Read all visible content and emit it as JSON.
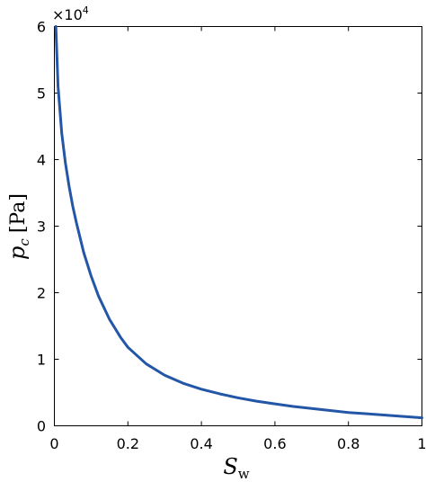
{
  "chart_data": {
    "type": "line",
    "title": "",
    "xlabel": {
      "base": "S",
      "sub": "w"
    },
    "ylabel": {
      "base": "p",
      "sub": "c",
      "unit": "[Pa]"
    },
    "xlim": [
      0,
      1
    ],
    "ylim": [
      0,
      6
    ],
    "y_scale_label": {
      "base": "×10",
      "exp": "4"
    },
    "x_ticks": [
      "0",
      "0.2",
      "0.4",
      "0.6",
      "0.8",
      "1"
    ],
    "y_ticks": [
      "0",
      "1",
      "2",
      "3",
      "4",
      "5",
      "6"
    ],
    "grid": false,
    "line_color": "#2356a6",
    "series": [
      {
        "x": [
          0.004,
          0.01,
          0.02,
          0.03,
          0.04,
          0.05,
          0.06,
          0.08,
          0.1,
          0.12,
          0.15,
          0.18,
          0.2,
          0.25,
          0.3,
          0.35,
          0.4,
          0.45,
          0.5,
          0.55,
          0.6,
          0.65,
          0.7,
          0.75,
          0.8,
          0.85,
          0.9,
          0.95,
          1.0
        ],
        "y": [
          6.0,
          5.1,
          4.4,
          3.95,
          3.6,
          3.3,
          3.05,
          2.6,
          2.25,
          1.95,
          1.6,
          1.33,
          1.18,
          0.93,
          0.76,
          0.64,
          0.55,
          0.48,
          0.42,
          0.37,
          0.33,
          0.29,
          0.26,
          0.23,
          0.2,
          0.18,
          0.16,
          0.14,
          0.12
        ]
      }
    ]
  }
}
